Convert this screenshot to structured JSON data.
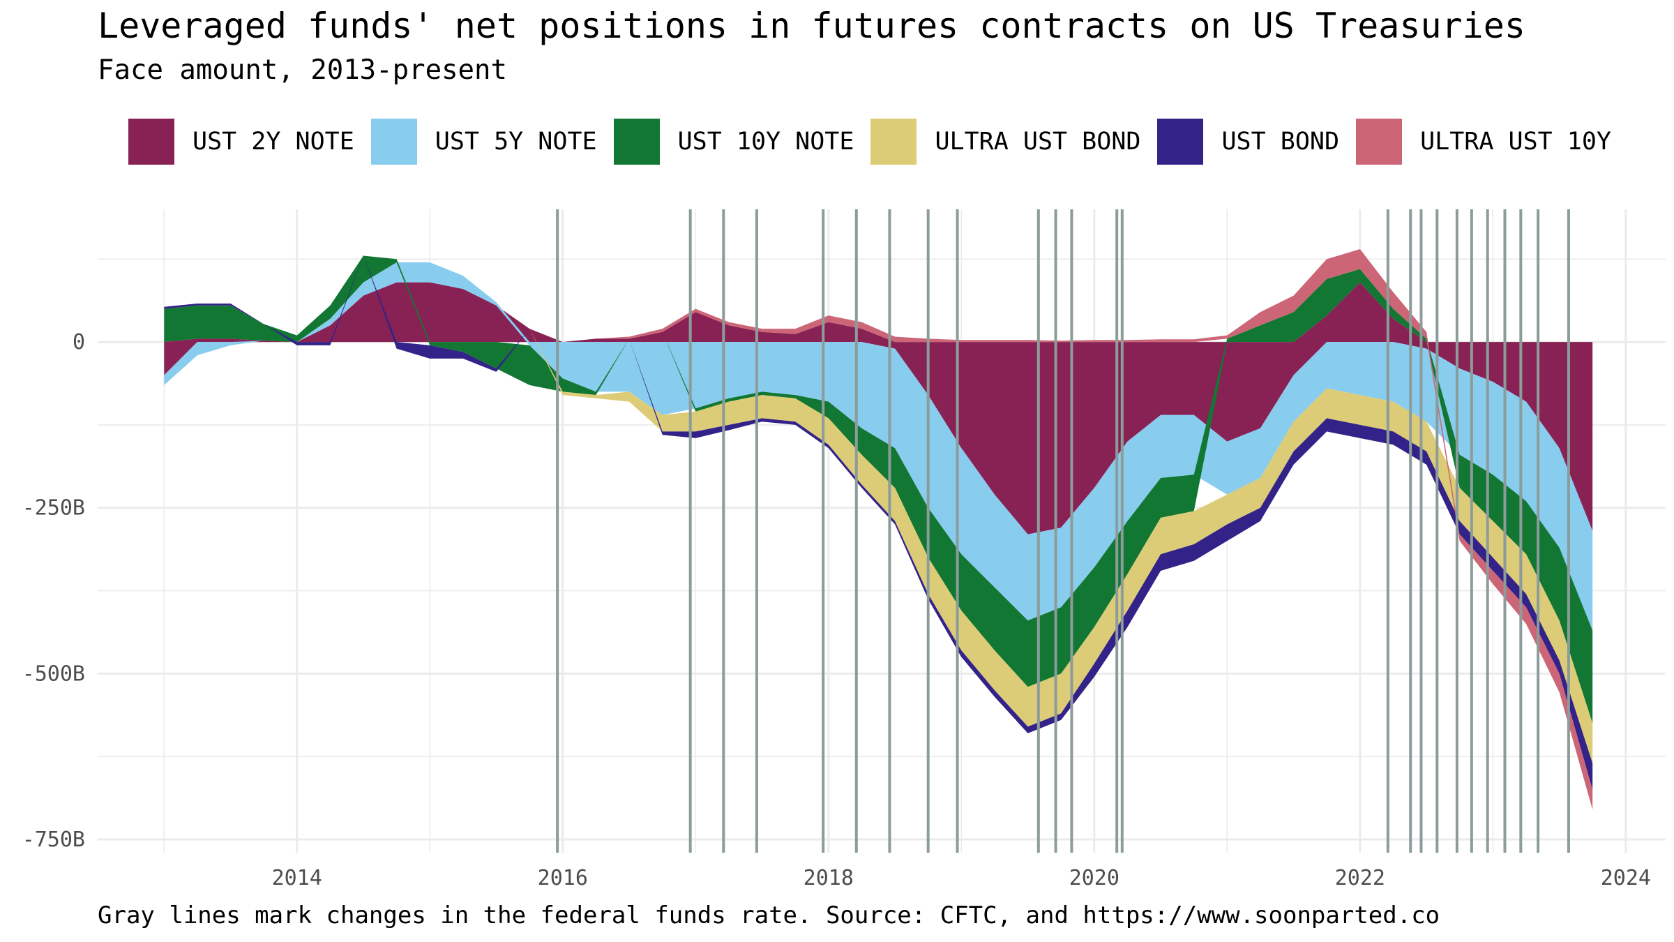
{
  "chart_data": {
    "type": "area",
    "title": "Leveraged funds' net positions in futures contracts on US Treasuries",
    "subtitle": "Face amount, 2013-present",
    "caption": "Gray lines mark changes in the federal funds rate. Source: CFTC, and https://www.soonparted.co",
    "stacked": true,
    "x_unit": "year",
    "xlim": [
      2012.5,
      2024.3
    ],
    "ylim": [
      -770,
      200
    ],
    "x_ticks": [
      2014,
      2016,
      2018,
      2020,
      2022,
      2024
    ],
    "x_tick_labels": [
      "2014",
      "2016",
      "2018",
      "2020",
      "2022",
      "2024"
    ],
    "y_ticks": [
      0,
      -250,
      -500,
      -750
    ],
    "y_tick_labels": [
      "0",
      "-250B",
      "-500B",
      "-750B"
    ],
    "grid": true,
    "legend_position": "top",
    "x": [
      2013.0,
      2013.25,
      2013.5,
      2013.75,
      2014.0,
      2014.25,
      2014.5,
      2014.75,
      2015.0,
      2015.25,
      2015.5,
      2015.75,
      2016.0,
      2016.25,
      2016.5,
      2016.75,
      2017.0,
      2017.25,
      2017.5,
      2017.75,
      2018.0,
      2018.25,
      2018.5,
      2018.75,
      2019.0,
      2019.25,
      2019.5,
      2019.75,
      2020.0,
      2020.25,
      2020.5,
      2020.75,
      2021.0,
      2021.25,
      2021.5,
      2021.75,
      2022.0,
      2022.25,
      2022.5,
      2022.75,
      2023.0,
      2023.25,
      2023.5,
      2023.75
    ],
    "series": [
      {
        "name": "UST 2Y NOTE",
        "color": "#882255",
        "values": [
          -50,
          5,
          5,
          2,
          0,
          25,
          70,
          90,
          90,
          80,
          55,
          20,
          0,
          5,
          5,
          15,
          45,
          25,
          15,
          12,
          30,
          20,
          -10,
          -80,
          -160,
          -230,
          -290,
          -280,
          -220,
          -150,
          -110,
          -110,
          -150,
          -130,
          -50,
          40,
          90,
          35,
          -10,
          -40,
          -60,
          -90,
          -160,
          -285
        ]
      },
      {
        "name": "UST 5Y NOTE",
        "color": "#88CCEE",
        "values": [
          -15,
          -20,
          -5,
          0,
          0,
          10,
          20,
          30,
          30,
          20,
          5,
          -5,
          -55,
          -75,
          -75,
          -110,
          -100,
          -85,
          -75,
          -80,
          -90,
          -130,
          -150,
          -170,
          -160,
          -140,
          -130,
          -120,
          -120,
          -120,
          -95,
          -90,
          -80,
          -75,
          -70,
          -70,
          -80,
          -90,
          -110,
          -130,
          -140,
          -150,
          -150,
          -150
        ]
      },
      {
        "name": "UST 10Y NOTE",
        "color": "#117733",
        "values": [
          50,
          50,
          50,
          25,
          10,
          20,
          40,
          5,
          -5,
          -15,
          -40,
          -60,
          -20,
          -5,
          0,
          0,
          -5,
          -5,
          -5,
          -5,
          -25,
          -40,
          -60,
          -75,
          -85,
          -95,
          -100,
          -100,
          -90,
          -80,
          -60,
          -55,
          5,
          25,
          45,
          55,
          20,
          15,
          5,
          -50,
          -70,
          -80,
          -110,
          -140
        ]
      },
      {
        "name": "ULTRA UST BOND",
        "color": "#DDCC77",
        "values": [
          0,
          0,
          0,
          0,
          0,
          0,
          0,
          0,
          0,
          0,
          0,
          0,
          -5,
          -5,
          -15,
          -25,
          -30,
          -35,
          -35,
          -35,
          -40,
          -45,
          -50,
          -55,
          -60,
          -60,
          -60,
          -60,
          -55,
          -55,
          -55,
          -50,
          -45,
          -45,
          -45,
          -45,
          -45,
          -45,
          -45,
          -50,
          -55,
          -60,
          -60,
          -60
        ]
      },
      {
        "name": "UST BOND",
        "color": "#332288",
        "values": [
          3,
          3,
          3,
          0,
          -5,
          -5,
          0,
          -10,
          -20,
          -10,
          -5,
          0,
          0,
          0,
          0,
          -5,
          -10,
          -8,
          -5,
          -5,
          -5,
          -5,
          -5,
          -8,
          -10,
          -10,
          -10,
          -10,
          -20,
          -25,
          -25,
          -25,
          -25,
          -20,
          -20,
          -20,
          -20,
          -20,
          -20,
          -20,
          -20,
          -20,
          -20,
          -40
        ]
      },
      {
        "name": "ULTRA UST 10Y",
        "color": "#CC6677",
        "values": [
          0,
          0,
          0,
          0,
          0,
          0,
          0,
          0,
          0,
          0,
          0,
          0,
          0,
          0,
          3,
          5,
          5,
          5,
          5,
          8,
          10,
          10,
          8,
          5,
          3,
          3,
          3,
          2,
          3,
          3,
          4,
          4,
          5,
          20,
          25,
          30,
          30,
          25,
          10,
          -10,
          -20,
          -25,
          -28,
          -30
        ]
      }
    ],
    "fed_rate_changes": [
      2015.96,
      2016.96,
      2017.21,
      2017.46,
      2017.96,
      2018.21,
      2018.46,
      2018.75,
      2018.97,
      2019.58,
      2019.71,
      2019.83,
      2020.17,
      2020.21,
      2022.21,
      2022.38,
      2022.46,
      2022.58,
      2022.73,
      2022.84,
      2022.96,
      2023.09,
      2023.21,
      2023.34,
      2023.57
    ]
  }
}
